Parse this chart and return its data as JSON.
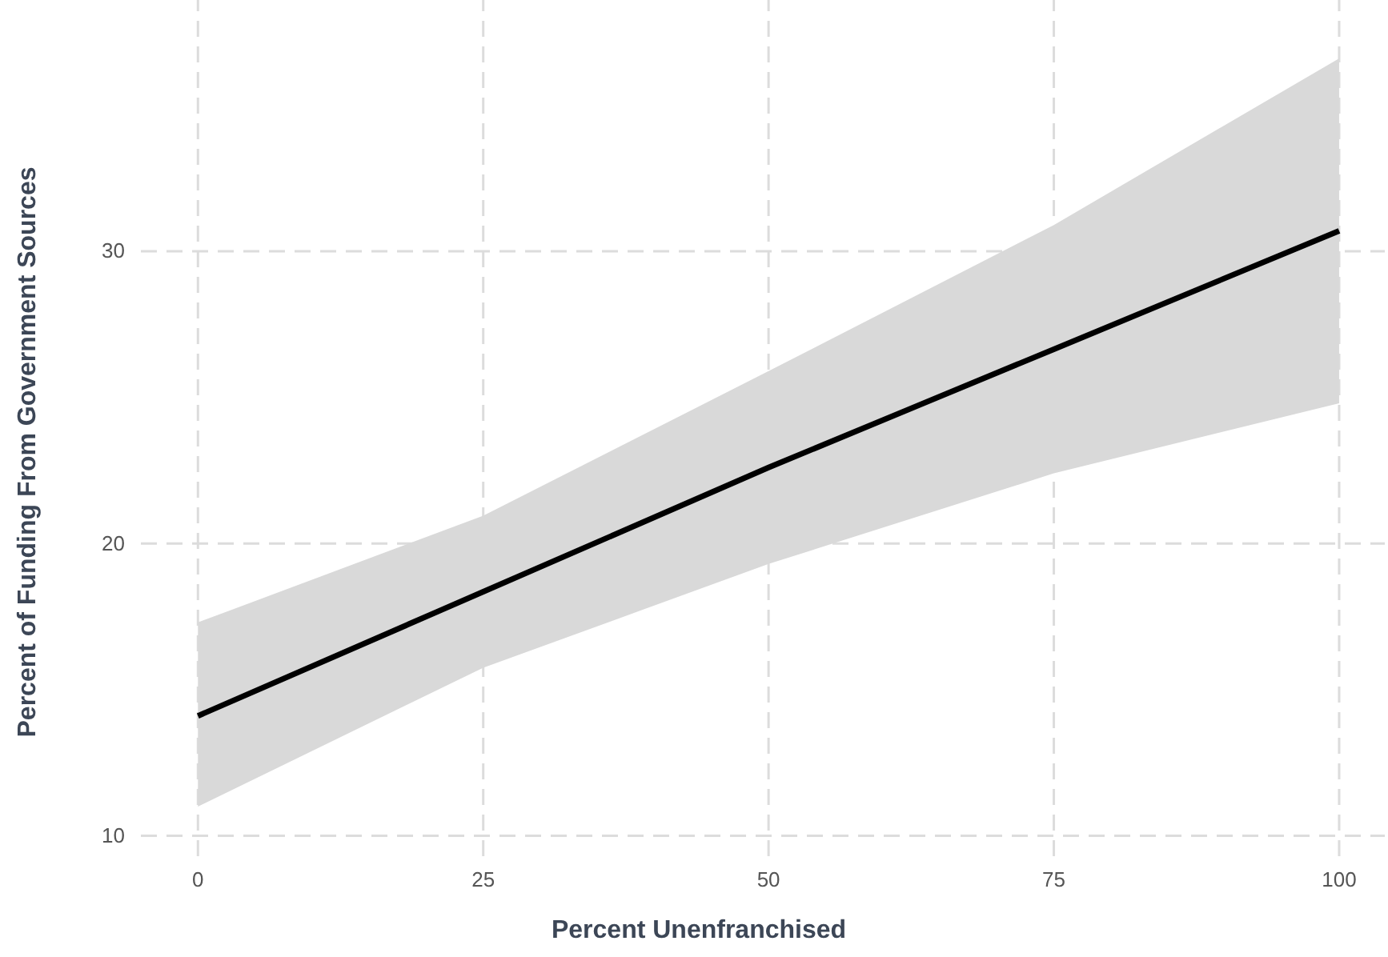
{
  "chart_data": {
    "type": "line",
    "xlabel": "Percent Unenfranchised",
    "ylabel": "Percent of Funding From Government Sources",
    "x": [
      0,
      25,
      50,
      75,
      100
    ],
    "series": [
      {
        "color": "#000000",
        "values": [
          14.1,
          18.35,
          22.6,
          26.65,
          30.7
        ],
        "lower": [
          11.0,
          15.75,
          19.3,
          22.4,
          24.8
        ],
        "upper": [
          17.3,
          20.95,
          25.9,
          30.9,
          36.6
        ]
      }
    ],
    "xlim": [
      -5,
      104
    ],
    "ylim": [
      9.3,
      38.6
    ],
    "xticks": [
      0,
      25,
      50,
      75,
      100
    ],
    "yticks": [
      10,
      20,
      30
    ],
    "grid": true,
    "marker": "none",
    "line_style": "solid"
  }
}
